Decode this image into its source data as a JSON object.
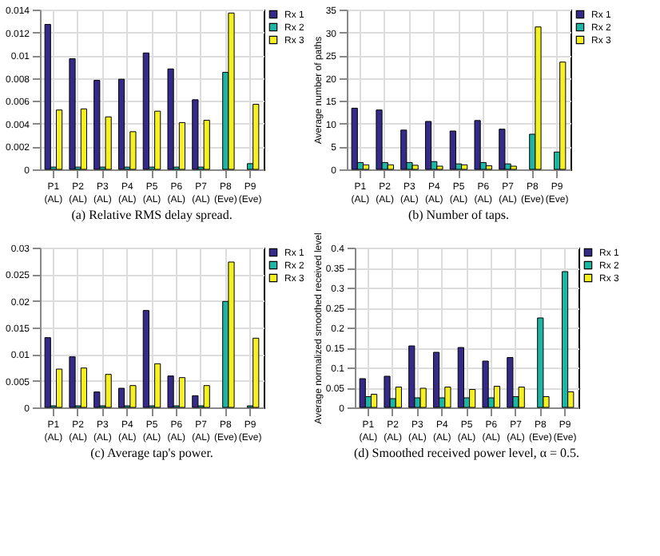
{
  "chart_data": [
    {
      "type": "bar",
      "title": "(a) Relative RMS delay spread.",
      "categories": [
        "P1 (AL)",
        "P2 (AL)",
        "P3 (AL)",
        "P4 (AL)",
        "P5 (AL)",
        "P6 (AL)",
        "P7 (AL)",
        "P8 (Eve)",
        "P9 (Eve)"
      ],
      "ylim": [
        0,
        0.014
      ],
      "yticks": [
        0,
        0.002,
        0.004,
        0.006,
        0.008,
        0.01,
        0.012,
        0.014
      ],
      "grid": true,
      "legend": "right",
      "series": [
        {
          "name": "Rx 1",
          "color": "#352a87",
          "values": [
            0.0127,
            0.0097,
            0.0078,
            0.0079,
            0.0102,
            0.0088,
            0.0061,
            null,
            null
          ]
        },
        {
          "name": "Rx 2",
          "color": "#1fb5a4",
          "values": [
            0.0002,
            0.0002,
            0.0002,
            0.0002,
            0.0002,
            0.0002,
            0.0002,
            0.0085,
            0.0005
          ]
        },
        {
          "name": "Rx 3",
          "color": "#f4f022",
          "values": [
            0.0052,
            0.0053,
            0.0046,
            0.0033,
            0.0051,
            0.0041,
            0.0043,
            0.0137,
            0.0057
          ]
        }
      ]
    },
    {
      "type": "bar",
      "title": "(b) Number of taps.",
      "ylabel": "Average number of paths",
      "categories": [
        "P1 (AL)",
        "P2 (AL)",
        "P3 (AL)",
        "P4 (AL)",
        "P5 (AL)",
        "P6 (AL)",
        "P7 (AL)",
        "P8 (Eve)",
        "P9 (Eve)"
      ],
      "ylim": [
        0,
        35
      ],
      "yticks": [
        0,
        5,
        10,
        15,
        20,
        25,
        30,
        35
      ],
      "grid": true,
      "legend": "right",
      "series": [
        {
          "name": "Rx 1",
          "color": "#352a87",
          "values": [
            13.4,
            13,
            8.6,
            10.5,
            8.4,
            10.7,
            8.8,
            null,
            null
          ]
        },
        {
          "name": "Rx 2",
          "color": "#1fb5a4",
          "values": [
            1.5,
            1.5,
            1.5,
            1.7,
            1.2,
            1.5,
            1.2,
            7.7,
            3.8
          ]
        },
        {
          "name": "Rx 3",
          "color": "#f4f022",
          "values": [
            1,
            1,
            0.9,
            0.7,
            1,
            0.8,
            0.7,
            31.2,
            23.5
          ]
        }
      ]
    },
    {
      "type": "bar",
      "title": "(c) Average tap's power.",
      "categories": [
        "P1 (AL)",
        "P2 (AL)",
        "P3 (AL)",
        "P4 (AL)",
        "P5 (AL)",
        "P6 (AL)",
        "P7 (AL)",
        "P8 (Eve)",
        "P9 (Eve)"
      ],
      "ylim": [
        0,
        0.03
      ],
      "yticks": [
        0,
        0.005,
        0.01,
        0.015,
        0.02,
        0.025,
        0.03
      ],
      "grid": true,
      "legend": "right",
      "series": [
        {
          "name": "Rx 1",
          "color": "#352a87",
          "values": [
            0.0131,
            0.0095,
            0.0029,
            0.0036,
            0.0182,
            0.0059,
            0.0022,
            null,
            null
          ]
        },
        {
          "name": "Rx 2",
          "color": "#1fb5a4",
          "values": [
            0.0003,
            0.0003,
            0.0003,
            0.0003,
            0.0003,
            0.0003,
            0.0003,
            0.0199,
            0.0003
          ]
        },
        {
          "name": "Rx 3",
          "color": "#f4f022",
          "values": [
            0.0072,
            0.0074,
            0.0062,
            0.0041,
            0.0082,
            0.0056,
            0.0041,
            0.0273,
            0.013
          ]
        }
      ]
    },
    {
      "type": "bar",
      "title": "(d) Smoothed received power level, α = 0.5.",
      "ylabel": "Average normalized smoothed received level",
      "categories": [
        "P1 (AL)",
        "P2 (AL)",
        "P3 (AL)",
        "P4 (AL)",
        "P5 (AL)",
        "P6 (AL)",
        "P7 (AL)",
        "P8 (Eve)",
        "P9 (Eve)"
      ],
      "ylim": [
        0,
        0.4
      ],
      "yticks": [
        0,
        0.05,
        0.1,
        0.15,
        0.2,
        0.25,
        0.3,
        0.35,
        0.4
      ],
      "grid": true,
      "legend": "right",
      "series": [
        {
          "name": "Rx 1",
          "color": "#352a87",
          "values": [
            0.072,
            0.078,
            0.154,
            0.138,
            0.15,
            0.116,
            0.125,
            null,
            null
          ]
        },
        {
          "name": "Rx 2",
          "color": "#1fb5a4",
          "values": [
            0.027,
            0.022,
            0.024,
            0.024,
            0.024,
            0.024,
            0.027,
            0.224,
            0.34
          ]
        },
        {
          "name": "Rx 3",
          "color": "#f4f022",
          "values": [
            0.033,
            0.051,
            0.048,
            0.051,
            0.045,
            0.053,
            0.051,
            0.027,
            0.039
          ]
        }
      ]
    }
  ]
}
